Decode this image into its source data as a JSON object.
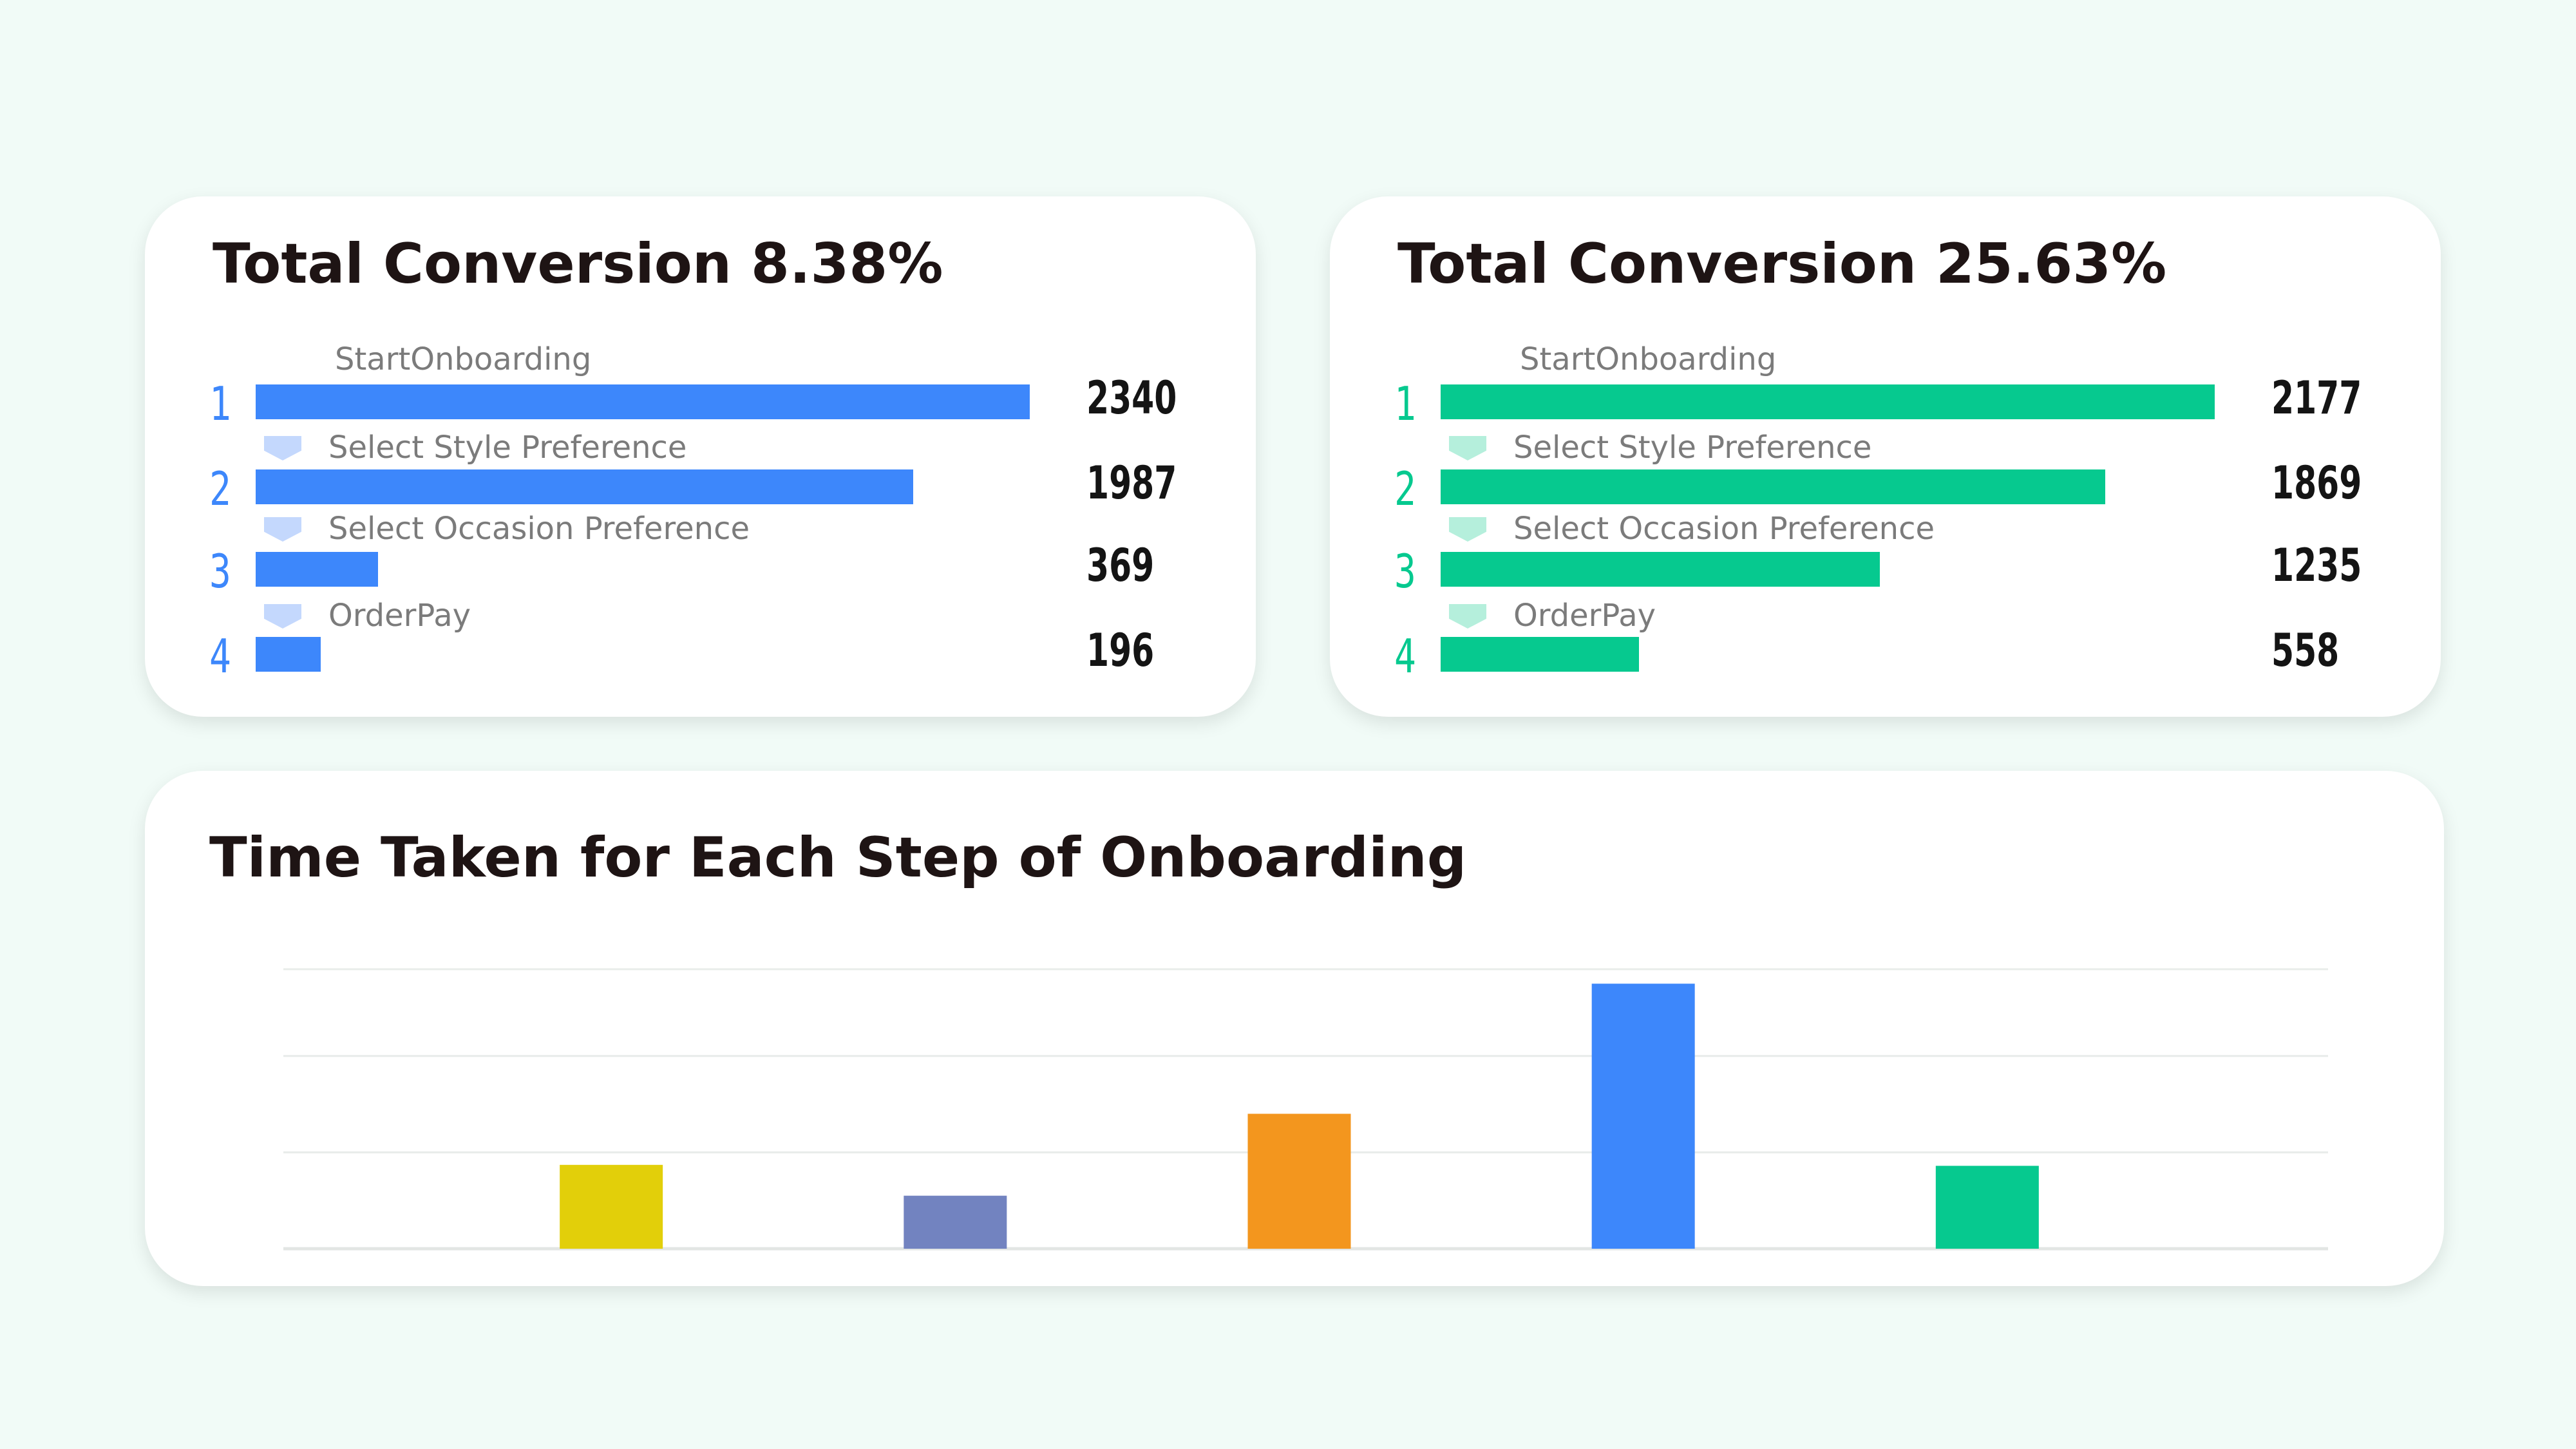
{
  "colors": {
    "funnel_left": "#3d87fb",
    "funnel_left_chevron": "#c4d8fd",
    "funnel_right": "#06c98f",
    "funnel_right_chevron": "#b5efdc",
    "grid": "#e8ecea",
    "axis": "#e3e6e4"
  },
  "funnels": [
    {
      "title": "Total Conversion 8.38%",
      "steps": [
        {
          "index": "1",
          "label": "StartOnboarding",
          "value": 2340,
          "value_text": "2340"
        },
        {
          "index": "2",
          "label": "Select Style Preference",
          "value": 1987,
          "value_text": "1987"
        },
        {
          "index": "3",
          "label": "Select Occasion Preference",
          "value": 369,
          "value_text": "369"
        },
        {
          "index": "4",
          "label": "OrderPay",
          "value": 196,
          "value_text": "196"
        }
      ]
    },
    {
      "title": "Total Conversion 25.63%",
      "steps": [
        {
          "index": "1",
          "label": "StartOnboarding",
          "value": 2177,
          "value_text": "2177"
        },
        {
          "index": "2",
          "label": "Select Style Preference",
          "value": 1869,
          "value_text": "1869"
        },
        {
          "index": "3",
          "label": "Select Occasion Preference",
          "value": 1235,
          "value_text": "1235"
        },
        {
          "index": "4",
          "label": "OrderPay",
          "value": 558,
          "value_text": "558"
        }
      ]
    }
  ],
  "time_chart": {
    "title": "Time Taken for Each Step of Onboarding"
  },
  "chart_data": {
    "type": "bar",
    "title": "Time Taken for Each Step of Onboarding",
    "values": [
      0.87,
      0.55,
      1.4,
      2.75,
      0.86
    ],
    "colors": [
      "#e2cf0a",
      "#7283c0",
      "#f3961e",
      "#3d87fb",
      "#06c98f"
    ],
    "ylim": [
      0,
      2.9
    ],
    "gridlines": [
      0,
      1,
      2,
      2.9
    ],
    "grid": true,
    "xlabel": "",
    "ylabel": ""
  }
}
